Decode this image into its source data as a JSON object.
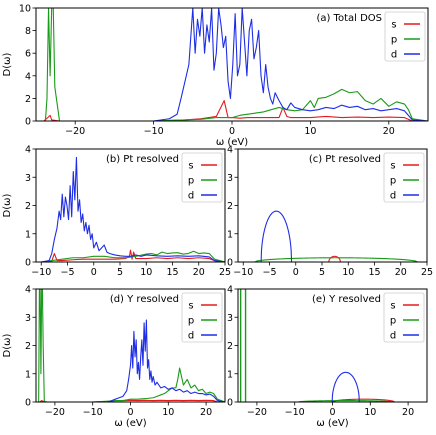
{
  "colors": {
    "s": "#e41a1c",
    "p": "#1a9a1a",
    "d": "#1f2ee6"
  },
  "chart_data": [
    {
      "type": "line",
      "title": "(a) Total DOS",
      "xlabel": "ω (eV)",
      "ylabel": "D(ω)",
      "xlim": [
        -25,
        25
      ],
      "ylim": [
        0,
        10
      ],
      "xticks": [
        -20,
        -10,
        0,
        10,
        20
      ],
      "yticks": [
        0,
        2,
        4,
        6,
        8,
        10
      ],
      "legend": [
        "s",
        "p",
        "d"
      ],
      "legend_position": "top-right",
      "series": [
        {
          "name": "s",
          "x": [
            -25,
            -24,
            -23.5,
            -23.2,
            -23,
            -22,
            -10,
            -8,
            -6,
            -4,
            -2,
            -1,
            -0.5,
            0,
            1,
            2,
            3,
            4,
            5,
            6,
            6.5,
            7,
            7.5,
            8,
            9,
            10,
            12,
            14,
            16,
            18,
            20,
            22,
            23,
            25
          ],
          "values": [
            0,
            0,
            0.3,
            0.5,
            0.1,
            0,
            0,
            0.05,
            0.1,
            0.2,
            0.4,
            1.8,
            0.3,
            0.3,
            0.25,
            0.3,
            0.3,
            0.3,
            0.3,
            0.3,
            1.2,
            0.4,
            0.3,
            0.3,
            0.3,
            0.3,
            0.4,
            0.3,
            0.35,
            0.3,
            0.35,
            0.3,
            0,
            0
          ]
        },
        {
          "name": "p",
          "x": [
            -25,
            -23.8,
            -23.6,
            -23.4,
            -23.2,
            -23.0,
            -22.8,
            -22.6,
            -22,
            -10,
            -8,
            -6,
            -4,
            -2,
            0,
            1,
            2,
            3,
            4,
            5,
            6,
            7,
            8,
            9,
            10,
            10.5,
            11,
            12,
            13,
            14,
            15,
            16,
            17,
            18,
            19,
            20,
            21,
            22,
            22.5,
            23,
            25
          ],
          "values": [
            0,
            0,
            2,
            10,
            4,
            10,
            10,
            3,
            0,
            0,
            0.05,
            0.1,
            0.15,
            0.3,
            0.3,
            0.5,
            0.6,
            0.7,
            0.8,
            1.0,
            1.2,
            1.0,
            0.9,
            1.0,
            1.8,
            1.2,
            2.0,
            2.1,
            2.4,
            2.8,
            2.5,
            2.6,
            1.8,
            1.5,
            2.0,
            1.3,
            1.7,
            1.5,
            1.0,
            0.2,
            0
          ]
        },
        {
          "name": "d",
          "x": [
            -25,
            -10,
            -8,
            -7,
            -6.5,
            -6,
            -5.5,
            -5,
            -4.7,
            -4.4,
            -4.1,
            -3.8,
            -3.5,
            -3.2,
            -2.9,
            -2.6,
            -2.3,
            -2,
            -1.7,
            -1.4,
            -1.1,
            -0.8,
            -0.5,
            -0.2,
            0.1,
            0.4,
            0.7,
            1.0,
            1.3,
            1.6,
            1.9,
            2.2,
            2.5,
            2.8,
            3.1,
            3.4,
            3.7,
            4.0,
            4.3,
            4.6,
            4.9,
            5.2,
            5.5,
            6,
            6.5,
            7,
            7.5,
            8,
            9,
            10,
            11,
            12,
            13,
            14,
            15,
            16,
            17,
            18,
            19,
            20,
            21,
            22,
            22.5,
            23,
            25
          ],
          "values": [
            0,
            0,
            0.2,
            0.6,
            2.0,
            3.5,
            5.0,
            10,
            6.0,
            9.0,
            7.5,
            10,
            6.0,
            8.5,
            7.0,
            10,
            4.5,
            6.0,
            10,
            8.5,
            6.5,
            7.5,
            3.5,
            2.0,
            5.0,
            9.5,
            4.0,
            5.0,
            10,
            7.0,
            4.0,
            8.0,
            9.0,
            5.5,
            6.5,
            8.0,
            4.0,
            2.5,
            5.0,
            3.0,
            2.0,
            1.5,
            2.5,
            1.8,
            1.2,
            1.0,
            1.6,
            1.2,
            1.0,
            0.9,
            1.0,
            1.2,
            1.1,
            1.4,
            1.2,
            1.3,
            1.0,
            1.1,
            0.9,
            1.0,
            1.1,
            0.9,
            0.5,
            0.1,
            0
          ]
        }
      ]
    },
    {
      "type": "line",
      "title": "(b) Pt resolved",
      "xlabel": "",
      "ylabel": "D(ω)",
      "xlim": [
        -11,
        25
      ],
      "ylim": [
        0,
        4
      ],
      "xticks": [
        -10,
        -5,
        0,
        5,
        10,
        15,
        20,
        25
      ],
      "yticks": [
        0,
        1,
        2,
        3,
        4
      ],
      "legend": [
        "s",
        "p",
        "d"
      ],
      "legend_position": "top-right",
      "series": [
        {
          "name": "s",
          "x": [
            -11,
            -10,
            -8,
            -7.5,
            -7,
            -6,
            -4,
            -2,
            0,
            2,
            4,
            6,
            6.8,
            7,
            7.3,
            7.6,
            8,
            10,
            12,
            14,
            16,
            18,
            20,
            22,
            23,
            25
          ],
          "values": [
            0,
            0,
            0.03,
            0.3,
            0.05,
            0.05,
            0.08,
            0.1,
            0.1,
            0.1,
            0.1,
            0.12,
            0.2,
            0.42,
            0.1,
            0.35,
            0.12,
            0.12,
            0.15,
            0.12,
            0.15,
            0.12,
            0.15,
            0.12,
            0.05,
            0
          ]
        },
        {
          "name": "p",
          "x": [
            -11,
            -10,
            -8,
            -6,
            -4,
            -2,
            0,
            2,
            4,
            6,
            8,
            10,
            11,
            12,
            13,
            14,
            15,
            16,
            17,
            18,
            19,
            20,
            21,
            22,
            23,
            25
          ],
          "values": [
            0,
            0,
            0.05,
            0.1,
            0.15,
            0.15,
            0.2,
            0.2,
            0.15,
            0.15,
            0.2,
            0.28,
            0.3,
            0.25,
            0.35,
            0.3,
            0.32,
            0.33,
            0.28,
            0.3,
            0.38,
            0.3,
            0.32,
            0.3,
            0.1,
            0
          ]
        },
        {
          "name": "d",
          "x": [
            -11,
            -10,
            -8.5,
            -8,
            -7.5,
            -7,
            -6.6,
            -6.3,
            -6,
            -5.7,
            -5.4,
            -5.1,
            -4.8,
            -4.5,
            -4.2,
            -3.9,
            -3.6,
            -3.3,
            -3.0,
            -2.7,
            -2.4,
            -2.1,
            -1.8,
            -1.5,
            -1.2,
            -0.9,
            -0.6,
            -0.3,
            0,
            0.5,
            1,
            1.5,
            2,
            2.5,
            3,
            4,
            5,
            6,
            7,
            8,
            9,
            10,
            12,
            14,
            16,
            18,
            20,
            22,
            23,
            25
          ],
          "values": [
            0,
            0,
            0.05,
            0.3,
            0.8,
            1.2,
            1.8,
            1.5,
            2.4,
            1.6,
            2.3,
            2.0,
            1.5,
            2.7,
            1.6,
            3.2,
            2.2,
            3.7,
            1.8,
            2.2,
            1.4,
            1.7,
            1.1,
            1.4,
            1.0,
            1.3,
            0.8,
            1.0,
            0.5,
            0.7,
            0.4,
            0.5,
            0.6,
            0.35,
            0.3,
            0.25,
            0.22,
            0.2,
            0.2,
            0.25,
            0.2,
            0.25,
            0.22,
            0.2,
            0.22,
            0.2,
            0.22,
            0.18,
            0.05,
            0
          ]
        }
      ]
    },
    {
      "type": "line",
      "title": "(c) Pt resolved",
      "xlabel": "",
      "ylabel": "",
      "xlim": [
        -11,
        25
      ],
      "ylim": [
        0,
        4
      ],
      "xticks": [
        -10,
        -5,
        0,
        5,
        10,
        15,
        20,
        25
      ],
      "yticks": [
        0,
        1,
        2,
        3,
        4
      ],
      "legend": [
        "s",
        "p",
        "d"
      ],
      "legend_position": "top-right",
      "series": [
        {
          "name": "s",
          "semicircle": true,
          "center": 7.4,
          "halfwidth": 1.1,
          "height": 0.2
        },
        {
          "name": "p",
          "semicircle": true,
          "center": 7.7,
          "halfwidth": 15.5,
          "height": 0.15
        },
        {
          "name": "d",
          "semicircle": true,
          "center": -3.7,
          "halfwidth": 2.9,
          "height": 1.8
        }
      ]
    },
    {
      "type": "line",
      "title": "(d) Y resolved",
      "xlabel": "ω (eV)",
      "ylabel": "D(ω)",
      "xlim": [
        -25,
        25
      ],
      "ylim": [
        0,
        4
      ],
      "xticks": [
        -20,
        -10,
        0,
        10,
        20
      ],
      "yticks": [
        0,
        1,
        2,
        3,
        4
      ],
      "legend": [
        "s",
        "p",
        "d"
      ],
      "legend_position": "top-right",
      "series": [
        {
          "name": "s",
          "x": [
            -25,
            -24,
            -23.5,
            -23,
            -22,
            -10,
            -6,
            -4,
            -2,
            0,
            2,
            4,
            6,
            8,
            10,
            12,
            14,
            16,
            18,
            20,
            22,
            23,
            25
          ],
          "values": [
            0,
            0,
            0.05,
            0.02,
            0,
            0,
            0.02,
            0.05,
            0.05,
            0.06,
            0.05,
            0.06,
            0.05,
            0.06,
            0.05,
            0.06,
            0.05,
            0.06,
            0.05,
            0.06,
            0.05,
            0,
            0
          ]
        },
        {
          "name": "p",
          "x": [
            -25,
            -24.3,
            -24.1,
            -23.9,
            -23.7,
            -23.5,
            -23.3,
            -23.1,
            -22.8,
            -22,
            -10,
            -6,
            -4,
            -2,
            0,
            2,
            4,
            6,
            7,
            8,
            9,
            10,
            11,
            12,
            12.5,
            13,
            14,
            15,
            16,
            17,
            18,
            19,
            20,
            21,
            22,
            23,
            25
          ],
          "values": [
            0,
            0,
            4,
            4,
            1,
            4,
            4,
            2,
            0,
            0,
            0,
            0.03,
            0.05,
            0.05,
            0.1,
            0.1,
            0.12,
            0.15,
            0.2,
            0.25,
            0.3,
            0.4,
            0.5,
            0.5,
            0.8,
            1.2,
            0.6,
            0.8,
            0.5,
            0.6,
            0.4,
            0.45,
            0.3,
            0.35,
            0.3,
            0.1,
            0
          ]
        },
        {
          "name": "d",
          "x": [
            -25,
            -6,
            -5,
            -4,
            -3,
            -2,
            -1,
            -0.5,
            0,
            0.3,
            0.6,
            0.9,
            1.2,
            1.5,
            1.8,
            2.1,
            2.4,
            2.7,
            3.0,
            3.3,
            3.6,
            3.9,
            4.2,
            4.5,
            4.8,
            5.1,
            5.4,
            5.7,
            6.0,
            6.5,
            7,
            8,
            9,
            10,
            11,
            12,
            13,
            14,
            15,
            16,
            17,
            18,
            19,
            20,
            21,
            22,
            23,
            25
          ],
          "values": [
            0,
            0,
            0.05,
            0.1,
            0.15,
            0.2,
            0.4,
            0.8,
            1.3,
            2.0,
            1.2,
            2.5,
            1.6,
            2.2,
            1.0,
            1.4,
            0.8,
            1.6,
            2.2,
            1.3,
            2.8,
            1.8,
            2.9,
            1.2,
            1.5,
            0.8,
            1.1,
            0.7,
            0.9,
            0.6,
            0.7,
            0.5,
            0.55,
            0.45,
            0.5,
            0.4,
            0.45,
            0.35,
            0.4,
            0.3,
            0.35,
            0.3,
            0.3,
            0.25,
            0.28,
            0.2,
            0.05,
            0
          ]
        }
      ]
    },
    {
      "type": "line",
      "title": "(e) Y resolved",
      "xlabel": "ω (eV)",
      "ylabel": "",
      "xlim": [
        -25,
        25
      ],
      "ylim": [
        0,
        4
      ],
      "xticks": [
        -20,
        -10,
        0,
        10,
        20
      ],
      "yticks": [
        0,
        1,
        2,
        3,
        4
      ],
      "legend": [
        "s",
        "p",
        "d"
      ],
      "legend_position": "top-right",
      "series": [
        {
          "name": "s",
          "semicircle": true,
          "center": 8.2,
          "halfwidth": 8.2,
          "height": 0.1
        },
        {
          "name": "p",
          "semicircle": true,
          "center": 3.5,
          "halfwidth": 12.5,
          "height": 0.05,
          "extra_lines": [
            -24.3,
            -23.0
          ]
        },
        {
          "name": "d",
          "semicircle": true,
          "center": 3.5,
          "halfwidth": 3.6,
          "height": 1.05
        }
      ]
    }
  ]
}
